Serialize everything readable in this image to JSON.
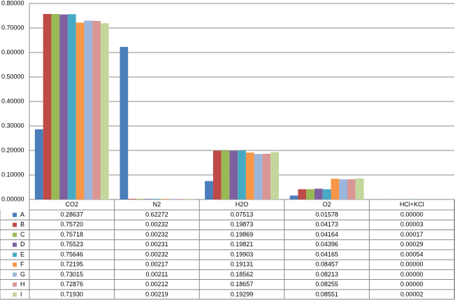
{
  "chart_data": {
    "type": "bar",
    "categories": [
      "CO2",
      "N2",
      "H2O",
      "O2",
      "HCl+KCl"
    ],
    "ylim": [
      0,
      0.8
    ],
    "yticks": [
      {
        "value": 0,
        "label": "0.00000"
      },
      {
        "value": 0.1,
        "label": "0.10000"
      },
      {
        "value": 0.2,
        "label": "0.20000"
      },
      {
        "value": 0.3,
        "label": "0.30000"
      },
      {
        "value": 0.4,
        "label": "0.40000"
      },
      {
        "value": 0.5,
        "label": "0.50000"
      },
      {
        "value": 0.6,
        "label": "0.60000"
      },
      {
        "value": 0.7,
        "label": "0.70000"
      },
      {
        "value": 0.8,
        "label": "0.80000"
      }
    ],
    "grid": true,
    "series": [
      {
        "name": "A",
        "color": "#4a7ebb",
        "values": [
          0.28637,
          0.62272,
          0.07513,
          0.01578,
          0
        ],
        "value_labels": [
          "0.28637",
          "0.62272",
          "0.07513",
          "0.01578",
          "0.00000"
        ]
      },
      {
        "name": "B",
        "color": "#be4b48",
        "values": [
          0.7572,
          0.00232,
          0.19873,
          0.04173,
          3e-05
        ],
        "value_labels": [
          "0.75720",
          "0.00232",
          "0.19873",
          "0.04173",
          "0.00003"
        ]
      },
      {
        "name": "C",
        "color": "#98b954",
        "values": [
          0.75718,
          0.00232,
          0.19869,
          0.04164,
          0.00017
        ],
        "value_labels": [
          "0.75718",
          "0.00232",
          "0.19869",
          "0.04164",
          "0.00017"
        ]
      },
      {
        "name": "D",
        "color": "#7d60a0",
        "values": [
          0.75523,
          0.00231,
          0.19821,
          0.04396,
          0.00029
        ],
        "value_labels": [
          "0.75523",
          "0.00231",
          "0.19821",
          "0.04396",
          "0.00029"
        ]
      },
      {
        "name": "E",
        "color": "#46aac4",
        "values": [
          0.75646,
          0.00232,
          0.19903,
          0.04165,
          0.00054
        ],
        "value_labels": [
          "0.75646",
          "0.00232",
          "0.19903",
          "0.04165",
          "0.00054"
        ]
      },
      {
        "name": "F",
        "color": "#f79646",
        "values": [
          0.72195,
          0.00217,
          0.19131,
          0.08457,
          0
        ],
        "value_labels": [
          "0.72195",
          "0.00217",
          "0.19131",
          "0.08457",
          "0.00000"
        ]
      },
      {
        "name": "G",
        "color": "#9bb5dc",
        "values": [
          0.73015,
          0.00211,
          0.18562,
          0.08213,
          0
        ],
        "value_labels": [
          "0.73015",
          "0.00211",
          "0.18562",
          "0.08213",
          "0.00000"
        ]
      },
      {
        "name": "H",
        "color": "#d99694",
        "values": [
          0.72876,
          0.00212,
          0.18657,
          0.08255,
          0
        ],
        "value_labels": [
          "0.72876",
          "0.00212",
          "0.18657",
          "0.08255",
          "0.00000"
        ]
      },
      {
        "name": "I",
        "color": "#c3d69b",
        "values": [
          0.7193,
          0.00219,
          0.19299,
          0.08551,
          2e-05
        ],
        "value_labels": [
          "0.71930",
          "0.00219",
          "0.19299",
          "0.08551",
          "0.00002"
        ]
      }
    ]
  }
}
